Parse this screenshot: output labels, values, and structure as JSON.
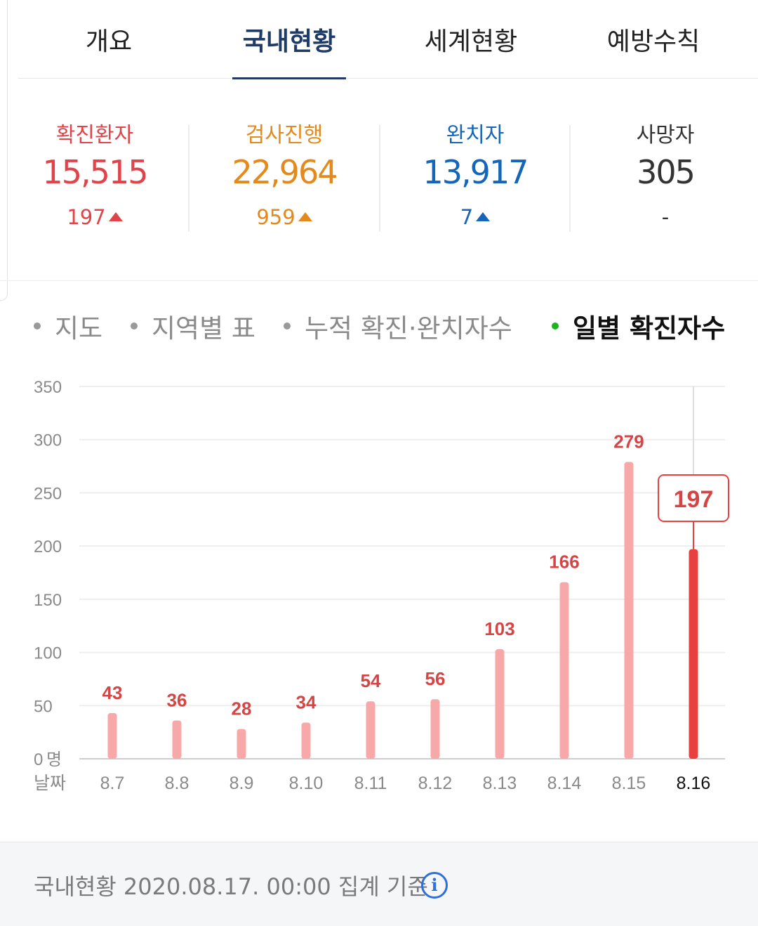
{
  "tabs": [
    {
      "label": "개요"
    },
    {
      "label": "국내현황"
    },
    {
      "label": "세계현황"
    },
    {
      "label": "예방수칙"
    }
  ],
  "stats": [
    {
      "label": "확진환자",
      "value": "15,515",
      "delta": "197",
      "color": "#e0444a"
    },
    {
      "label": "검사진행",
      "value": "22,964",
      "delta": "959",
      "color": "#e4891b"
    },
    {
      "label": "완치자",
      "value": "13,917",
      "delta": "7",
      "color": "#1566b8"
    },
    {
      "label": "사망자",
      "value": "305",
      "delta": "-",
      "color": "#333333"
    }
  ],
  "subtabs": [
    {
      "label": "지도"
    },
    {
      "label": "지역별 표"
    },
    {
      "label": "누적 확진·완치자수"
    },
    {
      "label": "일별 확진자수"
    }
  ],
  "chart_data": {
    "type": "bar",
    "categories": [
      "8.7",
      "8.8",
      "8.9",
      "8.10",
      "8.11",
      "8.12",
      "8.13",
      "8.14",
      "8.15",
      "8.16"
    ],
    "values": [
      43,
      36,
      28,
      34,
      54,
      56,
      103,
      166,
      279,
      197
    ],
    "ylim": [
      0,
      350
    ],
    "yticks": [
      0,
      50,
      100,
      150,
      200,
      250,
      300,
      350
    ],
    "y_unit_label": "명",
    "x_axis_label": "날짜",
    "highlight": {
      "category": "8.16",
      "value": "197"
    },
    "colors": {
      "bar": "#f7a9a9",
      "bar_highlight": "#e8403f",
      "label": "#d64545",
      "grid": "#eeeeee"
    }
  },
  "footer": {
    "text": "국내현황 2020.08.17. 00:00 집계 기준",
    "info_icon": "i"
  }
}
